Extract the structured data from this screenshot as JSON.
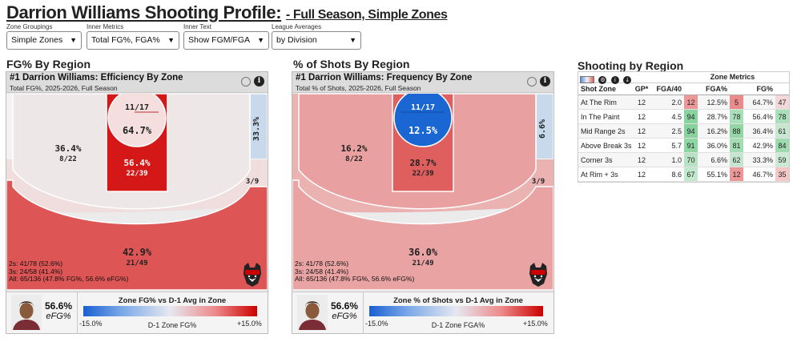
{
  "header": {
    "title_main": "Darrion Williams Shooting Profile:",
    "title_sub": "- Full Season, Simple Zones"
  },
  "filters": [
    {
      "label": "Zone Groupings",
      "value": "Simple Zones"
    },
    {
      "label": "Inner Metrics",
      "value": "Total FG%, FGA%"
    },
    {
      "label": "Inner Text",
      "value": "Show FGM/FGA"
    },
    {
      "label": "League Averages",
      "value": "by Division"
    }
  ],
  "colors": {
    "hot_red": "#cc0000",
    "cold_blue": "#1a5fd1",
    "table_green": "#7ccf93",
    "table_red": "#e88080"
  },
  "charts": [
    {
      "section_title": "FG% By Region",
      "card_title": "#1 Darrion Williams: Efficiency By Zone",
      "card_subtitle": "Total FG%, 2025-2026, Full Season",
      "zones": {
        "rim": {
          "pct": "64.7%",
          "frac": "11/17"
        },
        "paint": {
          "pct": "56.4%",
          "frac": "22/39"
        },
        "mid": {
          "pct": "36.4%",
          "frac": "8/22"
        },
        "corner_left": {
          "pct": "",
          "frac": ""
        },
        "corner_right": {
          "pct": "33.3%",
          "frac": "3/9"
        },
        "three": {
          "pct": "42.9%",
          "frac": "21/49"
        }
      },
      "stat_lines": [
        "2s: 41/78 (52.6%)",
        "3s: 24/58 (41.4%)",
        "All: 65/136 (47.8% FG%, 56.6% eFG%)"
      ],
      "efg_value": "56.6%",
      "efg_label": "eFG%",
      "scale_title": "Zone FG% vs D-1 Avg in Zone",
      "scale_min": "-15.0%",
      "scale_max": "+15.0%",
      "scale_label": "D-1 Zone FG%"
    },
    {
      "section_title": "% of Shots By Region",
      "card_title": "#1 Darrion Williams: Frequency By Zone",
      "card_subtitle": "Total % of Shots, 2025-2026, Full Season",
      "zones": {
        "rim": {
          "pct": "12.5%",
          "frac": "11/17"
        },
        "paint": {
          "pct": "28.7%",
          "frac": "22/39"
        },
        "mid": {
          "pct": "16.2%",
          "frac": "8/22"
        },
        "corner_left": {
          "pct": "",
          "frac": ""
        },
        "corner_right": {
          "pct": "6.6%",
          "frac": "3/9"
        },
        "three": {
          "pct": "36.0%",
          "frac": "21/49"
        }
      },
      "stat_lines": [
        "2s: 41/78 (52.6%)",
        "3s: 24/58 (41.4%)",
        "All: 65/136 (47.8% FG%, 56.6% eFG%)"
      ],
      "efg_value": "56.6%",
      "efg_label": "eFG%",
      "scale_title": "Zone % of Shots vs D-1 Avg in Zone",
      "scale_min": "-15.0%",
      "scale_max": "+15.0%",
      "scale_label": "D-1 Zone FGA%"
    }
  ],
  "table": {
    "section_title": "Shooting by Region",
    "group_header": "Zone Metrics",
    "columns": [
      "Shot Zone",
      "GP*",
      "FGA/40",
      "FGA%",
      "FG%"
    ],
    "rows": [
      {
        "zone": "At The Rim",
        "gp": "12",
        "fga40": "2.0",
        "fga40_rk": "12",
        "fgapct": "12.5%",
        "fgapct_rk": "5",
        "fgpct": "64.7%",
        "fgpct_rk": "47"
      },
      {
        "zone": "In The Paint",
        "gp": "12",
        "fga40": "4.5",
        "fga40_rk": "94",
        "fgapct": "28.7%",
        "fgapct_rk": "78",
        "fgpct": "56.4%",
        "fgpct_rk": "78"
      },
      {
        "zone": "Mid Range 2s",
        "gp": "12",
        "fga40": "2.5",
        "fga40_rk": "94",
        "fgapct": "16.2%",
        "fgapct_rk": "88",
        "fgpct": "36.4%",
        "fgpct_rk": "61"
      },
      {
        "zone": "Above Break 3s",
        "gp": "12",
        "fga40": "5.7",
        "fga40_rk": "91",
        "fgapct": "36.0%",
        "fgapct_rk": "81",
        "fgpct": "42.9%",
        "fgpct_rk": "84"
      },
      {
        "zone": "Corner 3s",
        "gp": "12",
        "fga40": "1.0",
        "fga40_rk": "70",
        "fgapct": "6.6%",
        "fgapct_rk": "62",
        "fgpct": "33.3%",
        "fgpct_rk": "59"
      },
      {
        "zone": "At Rim + 3s",
        "gp": "12",
        "fga40": "8.6",
        "fga40_rk": "67",
        "fgapct": "55.1%",
        "fgapct_rk": "12",
        "fgpct": "46.7%",
        "fgpct_rk": "35"
      }
    ]
  }
}
